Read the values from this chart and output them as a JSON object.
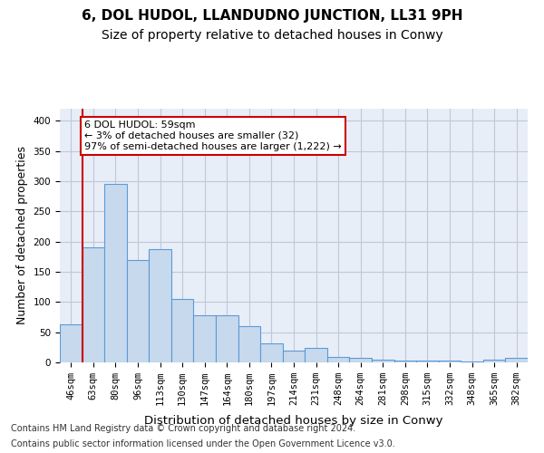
{
  "title": "6, DOL HUDOL, LLANDUDNO JUNCTION, LL31 9PH",
  "subtitle": "Size of property relative to detached houses in Conwy",
  "xlabel": "Distribution of detached houses by size in Conwy",
  "ylabel": "Number of detached properties",
  "footer_line1": "Contains HM Land Registry data © Crown copyright and database right 2024.",
  "footer_line2": "Contains public sector information licensed under the Open Government Licence v3.0.",
  "annotation_title": "6 DOL HUDOL: 59sqm",
  "annotation_line2": "← 3% of detached houses are smaller (32)",
  "annotation_line3": "97% of semi-detached houses are larger (1,222) →",
  "categories": [
    "46sqm",
    "63sqm",
    "80sqm",
    "96sqm",
    "113sqm",
    "130sqm",
    "147sqm",
    "164sqm",
    "180sqm",
    "197sqm",
    "214sqm",
    "231sqm",
    "248sqm",
    "264sqm",
    "281sqm",
    "298sqm",
    "315sqm",
    "332sqm",
    "348sqm",
    "365sqm",
    "382sqm"
  ],
  "values": [
    63,
    190,
    295,
    170,
    188,
    105,
    78,
    78,
    60,
    31,
    20,
    24,
    9,
    7,
    5,
    3,
    3,
    3,
    2,
    4,
    7
  ],
  "bar_color": "#c7d9ed",
  "bar_edge_color": "#5b9bd5",
  "highlight_line_color": "#cc0000",
  "annotation_box_edge_color": "#cc0000",
  "grid_color": "#c0c8d8",
  "background_color": "#e8eef7",
  "ylim": [
    0,
    420
  ],
  "yticks": [
    0,
    50,
    100,
    150,
    200,
    250,
    300,
    350,
    400
  ],
  "title_fontsize": 11,
  "subtitle_fontsize": 10,
  "axis_label_fontsize": 9,
  "tick_fontsize": 7.5,
  "footer_fontsize": 7
}
